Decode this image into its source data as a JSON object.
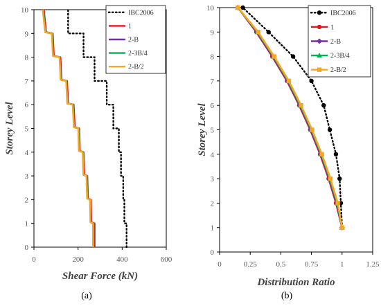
{
  "figure": {
    "caption_left": "(a)",
    "caption_right": "(b)"
  },
  "chart_data": [
    {
      "type": "line",
      "panel": "a",
      "xlabel": "Shear Force (kN)",
      "ylabel": "Storey Level",
      "xlim": [
        0,
        600
      ],
      "ylim": [
        0,
        10
      ],
      "xticks": [
        "0",
        "200",
        "400",
        "600"
      ],
      "yticks": [
        "0",
        "1",
        "2",
        "3",
        "4",
        "5",
        "6",
        "7",
        "8",
        "9",
        "10"
      ],
      "grid": false,
      "legend_position": "top-right",
      "series": [
        {
          "name": "IBC2006",
          "color": "#000000",
          "style": "dotted",
          "marker": "none",
          "points": [
            [
              420,
              0
            ],
            [
              420,
              1
            ],
            [
              410,
              1
            ],
            [
              410,
              2
            ],
            [
              405,
              2
            ],
            [
              405,
              3
            ],
            [
              395,
              3
            ],
            [
              395,
              4
            ],
            [
              385,
              4
            ],
            [
              385,
              5
            ],
            [
              360,
              5
            ],
            [
              360,
              6
            ],
            [
              330,
              6
            ],
            [
              330,
              7
            ],
            [
              275,
              7
            ],
            [
              275,
              8
            ],
            [
              225,
              8
            ],
            [
              225,
              9
            ],
            [
              155,
              9
            ],
            [
              155,
              10
            ]
          ]
        },
        {
          "name": "1",
          "color": "#e8141c",
          "style": "solid",
          "marker": "none",
          "points": [
            [
              275,
              0
            ],
            [
              275,
              1
            ],
            [
              260,
              1.05
            ],
            [
              258,
              2
            ],
            [
              245,
              2.05
            ],
            [
              242,
              3
            ],
            [
              228,
              3.05
            ],
            [
              225,
              4
            ],
            [
              208,
              4.05
            ],
            [
              205,
              5
            ],
            [
              185,
              5.05
            ],
            [
              180,
              6
            ],
            [
              155,
              6.05
            ],
            [
              150,
              7
            ],
            [
              125,
              7.05
            ],
            [
              120,
              8
            ],
            [
              90,
              8.05
            ],
            [
              85,
              9
            ],
            [
              55,
              9.05
            ],
            [
              45,
              10
            ]
          ]
        },
        {
          "name": "2-B",
          "color": "#7030a0",
          "style": "solid",
          "marker": "none",
          "points": [
            [
              270,
              0
            ],
            [
              270,
              1
            ],
            [
              258,
              1.05
            ],
            [
              256,
              2
            ],
            [
              243,
              2.05
            ],
            [
              240,
              3
            ],
            [
              226,
              3.05
            ],
            [
              223,
              4
            ],
            [
              206,
              4.05
            ],
            [
              203,
              5
            ],
            [
              183,
              5.05
            ],
            [
              178,
              6
            ],
            [
              153,
              6.05
            ],
            [
              148,
              7
            ],
            [
              123,
              7.05
            ],
            [
              118,
              8
            ],
            [
              88,
              8.05
            ],
            [
              83,
              9
            ],
            [
              53,
              9.05
            ],
            [
              43,
              10
            ]
          ]
        },
        {
          "name": "2-3B/4",
          "color": "#00b050",
          "style": "solid",
          "marker": "none",
          "points": [
            [
              270,
              0
            ],
            [
              270,
              1
            ],
            [
              257,
              1.05
            ],
            [
              255,
              2
            ],
            [
              242,
              2.05
            ],
            [
              239,
              3
            ],
            [
              225,
              3.05
            ],
            [
              222,
              4
            ],
            [
              205,
              4.05
            ],
            [
              202,
              5
            ],
            [
              182,
              5.05
            ],
            [
              177,
              6
            ],
            [
              152,
              6.05
            ],
            [
              147,
              7
            ],
            [
              122,
              7.05
            ],
            [
              117,
              8
            ],
            [
              87,
              8.05
            ],
            [
              82,
              9
            ],
            [
              52,
              9.05
            ],
            [
              42,
              10
            ]
          ]
        },
        {
          "name": "2-B/2",
          "color": "#f5a623",
          "style": "solid",
          "marker": "none",
          "points": [
            [
              268,
              0
            ],
            [
              268,
              1
            ],
            [
              256,
              1.05
            ],
            [
              254,
              2
            ],
            [
              241,
              2.05
            ],
            [
              238,
              3
            ],
            [
              224,
              3.05
            ],
            [
              221,
              4
            ],
            [
              204,
              4.05
            ],
            [
              201,
              5
            ],
            [
              181,
              5.05
            ],
            [
              176,
              6
            ],
            [
              151,
              6.05
            ],
            [
              146,
              7
            ],
            [
              121,
              7.05
            ],
            [
              116,
              8
            ],
            [
              86,
              8.05
            ],
            [
              81,
              9
            ],
            [
              51,
              9.05
            ],
            [
              40,
              10
            ]
          ]
        }
      ]
    },
    {
      "type": "line",
      "panel": "b",
      "xlabel": "Distribution Ratio",
      "ylabel": "Storey  Level",
      "xlim": [
        0,
        1.25
      ],
      "ylim": [
        0,
        10
      ],
      "xticks": [
        "0",
        "0.25",
        "0.5",
        "0.75",
        "1",
        "1.25"
      ],
      "yticks": [
        "0",
        "1",
        "2",
        "3",
        "4",
        "5",
        "6",
        "7",
        "8",
        "9",
        "10"
      ],
      "grid": false,
      "legend_position": "top-right",
      "series": [
        {
          "name": "IBC2006",
          "color": "#000000",
          "style": "dotted",
          "marker": "circle",
          "points": [
            [
              1.0,
              1
            ],
            [
              0.99,
              2
            ],
            [
              0.98,
              3
            ],
            [
              0.95,
              4
            ],
            [
              0.9,
              5
            ],
            [
              0.85,
              6
            ],
            [
              0.75,
              7
            ],
            [
              0.6,
              8
            ],
            [
              0.4,
              9
            ],
            [
              0.19,
              10
            ]
          ]
        },
        {
          "name": "1",
          "color": "#e8141c",
          "style": "solid",
          "marker": "circle",
          "points": [
            [
              1.0,
              1
            ],
            [
              0.95,
              2
            ],
            [
              0.89,
              3
            ],
            [
              0.82,
              4
            ],
            [
              0.74,
              5
            ],
            [
              0.65,
              6
            ],
            [
              0.55,
              7
            ],
            [
              0.43,
              8
            ],
            [
              0.3,
              9
            ],
            [
              0.15,
              10
            ]
          ]
        },
        {
          "name": "2-B",
          "color": "#7030a0",
          "style": "solid",
          "marker": "diamond",
          "points": [
            [
              1.0,
              1
            ],
            [
              0.955,
              2
            ],
            [
              0.895,
              3
            ],
            [
              0.825,
              4
            ],
            [
              0.745,
              5
            ],
            [
              0.655,
              6
            ],
            [
              0.555,
              7
            ],
            [
              0.435,
              8
            ],
            [
              0.305,
              9
            ],
            [
              0.15,
              10
            ]
          ]
        },
        {
          "name": "2-3B/4",
          "color": "#00b050",
          "style": "solid",
          "marker": "triangle",
          "points": [
            [
              1.0,
              1
            ],
            [
              0.96,
              2
            ],
            [
              0.9,
              3
            ],
            [
              0.83,
              4
            ],
            [
              0.75,
              5
            ],
            [
              0.66,
              6
            ],
            [
              0.56,
              7
            ],
            [
              0.44,
              8
            ],
            [
              0.31,
              9
            ],
            [
              0.15,
              10
            ]
          ]
        },
        {
          "name": "2-B/2",
          "color": "#f5a623",
          "style": "solid",
          "marker": "square",
          "points": [
            [
              1.0,
              1
            ],
            [
              0.965,
              2
            ],
            [
              0.905,
              3
            ],
            [
              0.835,
              4
            ],
            [
              0.755,
              5
            ],
            [
              0.665,
              6
            ],
            [
              0.565,
              7
            ],
            [
              0.445,
              8
            ],
            [
              0.315,
              9
            ],
            [
              0.15,
              10
            ]
          ]
        }
      ]
    }
  ]
}
